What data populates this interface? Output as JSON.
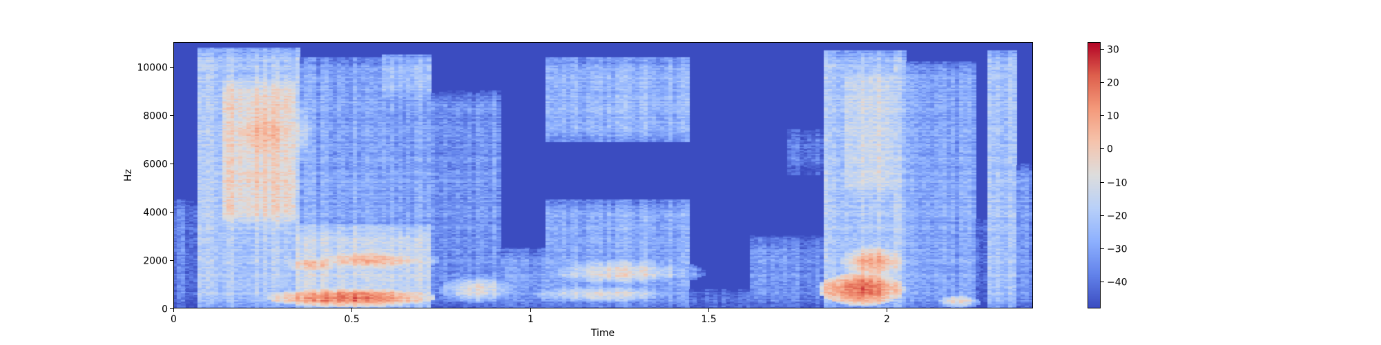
{
  "chart_data": {
    "type": "heatmap",
    "title": "",
    "xlabel": "Time",
    "ylabel": "Hz",
    "xlim": [
      0,
      2.41
    ],
    "ylim": [
      0,
      11025
    ],
    "x_ticks": [
      {
        "value": 0,
        "label": "0"
      },
      {
        "value": 0.5,
        "label": "0.5"
      },
      {
        "value": 1,
        "label": "1"
      },
      {
        "value": 1.5,
        "label": "1.5"
      },
      {
        "value": 2,
        "label": "2"
      }
    ],
    "y_ticks": [
      {
        "value": 0,
        "label": "0"
      },
      {
        "value": 2000,
        "label": "2000"
      },
      {
        "value": 4000,
        "label": "4000"
      },
      {
        "value": 6000,
        "label": "6000"
      },
      {
        "value": 8000,
        "label": "8000"
      },
      {
        "value": 10000,
        "label": "10000"
      }
    ],
    "colormap": "coolwarm",
    "colorbar": {
      "vmin": -48,
      "vmax": 32,
      "ticks": [
        {
          "value": 30,
          "label": "30"
        },
        {
          "value": 20,
          "label": "20"
        },
        {
          "value": 10,
          "label": "10"
        },
        {
          "value": 0,
          "label": "0"
        },
        {
          "value": -10,
          "label": "−10"
        },
        {
          "value": -20,
          "label": "−20"
        },
        {
          "value": -30,
          "label": "−30"
        },
        {
          "value": -40,
          "label": "−40"
        }
      ]
    },
    "energy_regions": [
      {
        "t": [
          0.0,
          0.07
        ],
        "f": [
          0,
          4600
        ],
        "level_db": -38
      },
      {
        "t": [
          0.07,
          0.36
        ],
        "f": [
          0,
          10800
        ],
        "level_db": -20
      },
      {
        "t": [
          0.14,
          0.34
        ],
        "f": [
          3500,
          9500
        ],
        "level_db": -5
      },
      {
        "t": [
          0.35,
          0.72
        ],
        "f": [
          0,
          10400
        ],
        "level_db": -30
      },
      {
        "t": [
          0.35,
          0.72
        ],
        "f": [
          0,
          3500
        ],
        "level_db": -14
      },
      {
        "t": [
          0.58,
          0.72
        ],
        "f": [
          8500,
          10500
        ],
        "level_db": -22
      },
      {
        "t": [
          0.72,
          0.92
        ],
        "f": [
          0,
          9000
        ],
        "level_db": -33
      },
      {
        "t": [
          0.92,
          1.05
        ],
        "f": [
          0,
          2500
        ],
        "level_db": -32
      },
      {
        "t": [
          1.05,
          1.45
        ],
        "f": [
          6900,
          10400
        ],
        "level_db": -25
      },
      {
        "t": [
          1.05,
          1.45
        ],
        "f": [
          0,
          4500
        ],
        "level_db": -28
      },
      {
        "t": [
          1.45,
          1.62
        ],
        "f": [
          0,
          800
        ],
        "level_db": -36
      },
      {
        "t": [
          1.62,
          1.83
        ],
        "f": [
          0,
          3000
        ],
        "level_db": -34
      },
      {
        "t": [
          1.72,
          1.83
        ],
        "f": [
          5500,
          7500
        ],
        "level_db": -38
      },
      {
        "t": [
          1.83,
          2.05
        ],
        "f": [
          0,
          10700
        ],
        "level_db": -20
      },
      {
        "t": [
          1.88,
          2.02
        ],
        "f": [
          4500,
          10000
        ],
        "level_db": -12
      },
      {
        "t": [
          2.05,
          2.25
        ],
        "f": [
          0,
          10200
        ],
        "level_db": -30
      },
      {
        "t": [
          2.25,
          2.28
        ],
        "f": [
          0,
          4000
        ],
        "level_db": -42
      },
      {
        "t": [
          2.28,
          2.36
        ],
        "f": [
          0,
          10700
        ],
        "level_db": -22
      },
      {
        "t": [
          2.36,
          2.41
        ],
        "f": [
          0,
          6000
        ],
        "level_db": -34
      }
    ],
    "hot_spots": [
      {
        "t": 0.25,
        "f": 7300,
        "st": 0.07,
        "sf": 1000,
        "level_db": 4
      },
      {
        "t": 0.22,
        "f": 5500,
        "st": 0.06,
        "sf": 800,
        "level_db": -2
      },
      {
        "t": 0.5,
        "f": 450,
        "st": 0.12,
        "sf": 200,
        "level_db": 18
      },
      {
        "t": 0.55,
        "f": 2000,
        "st": 0.1,
        "sf": 250,
        "level_db": 4
      },
      {
        "t": 0.4,
        "f": 1800,
        "st": 0.05,
        "sf": 200,
        "level_db": 2
      },
      {
        "t": 1.25,
        "f": 1500,
        "st": 0.12,
        "sf": 300,
        "level_db": -6
      },
      {
        "t": 1.2,
        "f": 600,
        "st": 0.12,
        "sf": 200,
        "level_db": -8
      },
      {
        "t": 1.93,
        "f": 800,
        "st": 0.06,
        "sf": 350,
        "level_db": 22
      },
      {
        "t": 1.96,
        "f": 1900,
        "st": 0.05,
        "sf": 400,
        "level_db": 8
      },
      {
        "t": 0.85,
        "f": 800,
        "st": 0.06,
        "sf": 300,
        "level_db": -6
      },
      {
        "t": 2.2,
        "f": 300,
        "st": 0.03,
        "sf": 150,
        "level_db": -4
      }
    ]
  }
}
